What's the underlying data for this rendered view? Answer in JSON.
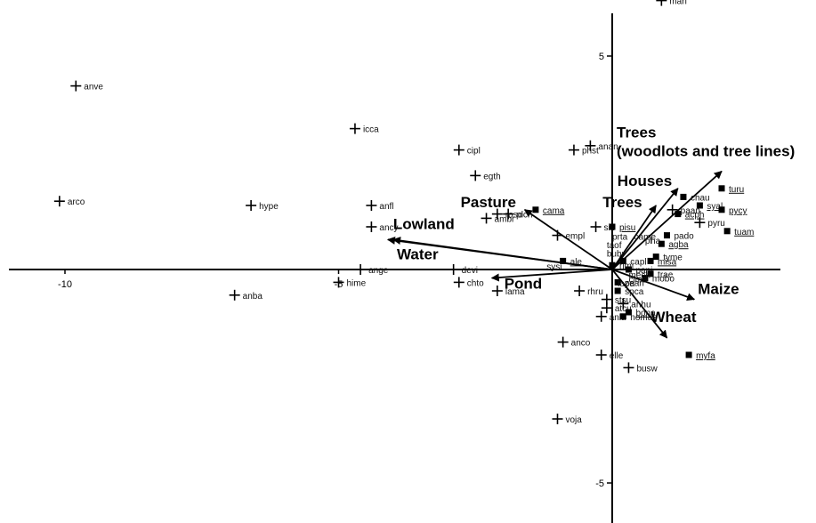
{
  "chart_data": {
    "type": "scatter",
    "title": "",
    "xlabel": "",
    "ylabel": "",
    "xlim": [
      -11.0,
      3.0
    ],
    "ylim": [
      -6.6,
      6.6
    ],
    "x_ticks": [
      {
        "value": -10,
        "label": "-10"
      },
      {
        "value": -5,
        "label": "-5"
      }
    ],
    "y_ticks": [
      {
        "value": 5,
        "label": "5"
      },
      {
        "value": -5,
        "label": "-5"
      }
    ],
    "axes": {
      "origin": [
        0,
        0
      ],
      "grid": false
    },
    "species_plus": [
      {
        "label": "mari",
        "x": 0.9,
        "y": 6.3
      },
      {
        "label": "anve",
        "x": -9.8,
        "y": 4.3
      },
      {
        "label": "icca",
        "x": -4.7,
        "y": 3.3
      },
      {
        "label": "cipl",
        "x": -2.8,
        "y": 2.8
      },
      {
        "label": "phst",
        "x": -0.7,
        "y": 2.8
      },
      {
        "label": "anan",
        "x": -0.4,
        "y": 2.9
      },
      {
        "label": "egth",
        "x": -2.5,
        "y": 2.2
      },
      {
        "label": "arco",
        "x": -10.1,
        "y": 1.6
      },
      {
        "label": "hype",
        "x": -6.6,
        "y": 1.5
      },
      {
        "label": "anfl",
        "x": -4.4,
        "y": 1.5
      },
      {
        "label": "plch",
        "x": -1.9,
        "y": 1.3
      },
      {
        "label": "ambr",
        "x": -2.3,
        "y": 1.2
      },
      {
        "label": "roso",
        "x": -2.1,
        "y": 1.3
      },
      {
        "label": "ancy",
        "x": -4.4,
        "y": 1.0
      },
      {
        "label": "empl",
        "x": -1.0,
        "y": 0.8
      },
      {
        "label": "sifl",
        "x": -0.3,
        "y": 1.0
      },
      {
        "label": "devi",
        "x": -2.9,
        "y": 0.0
      },
      {
        "label": "ange",
        "x": -4.6,
        "y": 0.0
      },
      {
        "label": "hime",
        "x": -5.0,
        "y": -0.3
      },
      {
        "label": "chto",
        "x": -2.8,
        "y": -0.3
      },
      {
        "label": "lama",
        "x": -2.1,
        "y": -0.5
      },
      {
        "label": "rhru",
        "x": -0.6,
        "y": -0.5
      },
      {
        "label": "stsu",
        "x": -0.1,
        "y": -0.7
      },
      {
        "label": "atcu",
        "x": -0.1,
        "y": -0.9
      },
      {
        "label": "anlu",
        "x": -0.2,
        "y": -1.1
      },
      {
        "label": "anhu",
        "x": 0.2,
        "y": -0.8
      },
      {
        "label": "anba",
        "x": -6.9,
        "y": -0.6
      },
      {
        "label": "anco",
        "x": -0.9,
        "y": -1.7
      },
      {
        "label": "elle",
        "x": -0.2,
        "y": -2.0
      },
      {
        "label": "busw",
        "x": 0.3,
        "y": -2.3
      },
      {
        "label": "voja",
        "x": -1.0,
        "y": -3.5
      },
      {
        "label": "pyru",
        "x": 1.6,
        "y": 1.1
      },
      {
        "label": "paan",
        "x": 1.1,
        "y": 1.4
      }
    ],
    "species_square": [
      {
        "label": "cama",
        "x": -1.4,
        "y": 1.4,
        "underline": true
      },
      {
        "label": "turu",
        "x": 2.0,
        "y": 1.9,
        "underline": true
      },
      {
        "label": "chau",
        "x": 1.3,
        "y": 1.7,
        "underline": false
      },
      {
        "label": "syal",
        "x": 1.6,
        "y": 1.5,
        "underline": true
      },
      {
        "label": "acph",
        "x": 1.2,
        "y": 1.3,
        "underline": true
      },
      {
        "label": "pycy",
        "x": 2.0,
        "y": 1.4,
        "underline": true
      },
      {
        "label": "pisu",
        "x": 0.0,
        "y": 1.0,
        "underline": true
      },
      {
        "label": "pado",
        "x": 1.0,
        "y": 0.8,
        "underline": false
      },
      {
        "label": "tuam",
        "x": 2.1,
        "y": 0.9,
        "underline": true
      },
      {
        "label": "agba",
        "x": 0.9,
        "y": 0.6,
        "underline": true
      },
      {
        "label": "tyme",
        "x": 0.8,
        "y": 0.3,
        "underline": false
      },
      {
        "label": "misa",
        "x": 0.7,
        "y": 0.2,
        "underline": true
      },
      {
        "label": "capl",
        "x": 0.2,
        "y": 0.2,
        "underline": false
      },
      {
        "label": "pani",
        "x": 0.3,
        "y": 0.0,
        "underline": false
      },
      {
        "label": "trae",
        "x": 0.7,
        "y": -0.1,
        "underline": false
      },
      {
        "label": "mobo",
        "x": 0.6,
        "y": -0.2,
        "underline": false
      },
      {
        "label": "bona",
        "x": 0.3,
        "y": -1.0,
        "underline": true
      },
      {
        "label": "noma",
        "x": 0.2,
        "y": -1.1,
        "underline": false
      },
      {
        "label": "myfa",
        "x": 1.4,
        "y": -2.0,
        "underline": true
      },
      {
        "label": "ale",
        "x": -0.9,
        "y": 0.2,
        "underline": true
      },
      {
        "label": "rimi",
        "x": 0.0,
        "y": 0.1,
        "underline": false
      },
      {
        "label": "spca",
        "x": 0.1,
        "y": -0.5,
        "underline": false
      },
      {
        "label": "zean",
        "x": 0.1,
        "y": -0.3,
        "underline": false
      }
    ],
    "cluster_labels": [
      {
        "label": "sysi",
        "x": -1.2,
        "y": 0.0
      },
      {
        "label": "prta",
        "x": 0.0,
        "y": 0.7
      },
      {
        "label": "came",
        "x": 0.4,
        "y": 0.7
      },
      {
        "label": "bubr",
        "x": -0.1,
        "y": 0.3
      },
      {
        "label": "taof",
        "x": -0.1,
        "y": 0.5
      },
      {
        "label": "mech",
        "x": 0.3,
        "y": -0.2
      },
      {
        "label": "cima",
        "x": 0.3,
        "y": -0.3
      },
      {
        "label": "lapa",
        "x": 0.1,
        "y": -0.4
      },
      {
        "label": "ha",
        "x": 0.7,
        "y": 0.6
      },
      {
        "label": "pi",
        "x": 0.6,
        "y": 0.6
      }
    ],
    "vectors": [
      {
        "label": "Trees (woodlots and tree lines)",
        "x": 2.0,
        "y": 2.3
      },
      {
        "label": "Houses",
        "x": 1.2,
        "y": 1.9
      },
      {
        "label": "Trees",
        "x": 0.8,
        "y": 1.5
      },
      {
        "label": "Pasture",
        "x": -1.6,
        "y": 1.4
      },
      {
        "label": "Lowland",
        "x": -4.1,
        "y": 0.7
      },
      {
        "label": "Water",
        "x": -4.0,
        "y": 0.7
      },
      {
        "label": "Pond",
        "x": -2.2,
        "y": -0.2
      },
      {
        "label": "Maize",
        "x": 1.5,
        "y": -0.7
      },
      {
        "label": "Wheat",
        "x": 1.0,
        "y": -1.6
      }
    ]
  }
}
